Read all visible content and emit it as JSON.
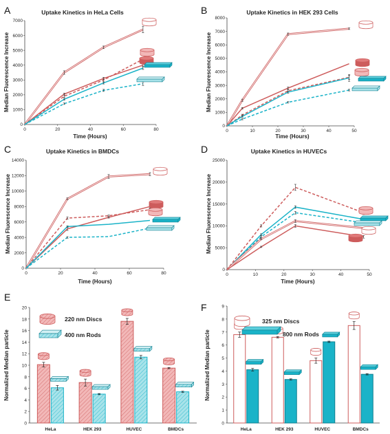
{
  "colors": {
    "red": "#cd5c5c",
    "teal": "#1ab3c8",
    "axis": "#444444",
    "disc_fill": "#f2b8b8",
    "rod_fill": "#a8e3ea"
  },
  "chart_data": [
    {
      "panel": "A",
      "type": "line",
      "title": "Uptake Kinetics in HeLa Cells",
      "xlabel": "Time (Hours)",
      "ylabel": "Median Fluorescence Increase",
      "xlim": [
        0,
        80
      ],
      "ylim": [
        0,
        7000
      ],
      "xticks": [
        0,
        20,
        40,
        60,
        80
      ],
      "yticks": [
        0,
        1000,
        2000,
        3000,
        4000,
        5000,
        6000,
        7000
      ],
      "x": [
        0,
        24,
        48,
        72
      ],
      "series": [
        {
          "style": "red-double",
          "values": [
            0,
            3500,
            5200,
            6400
          ],
          "err": [
            0,
            120,
            90,
            220
          ]
        },
        {
          "style": "red-dashed",
          "values": [
            0,
            1900,
            3000,
            4400
          ],
          "err": [
            0,
            80,
            120,
            120
          ]
        },
        {
          "style": "red-solid",
          "values": [
            0,
            2050,
            3100,
            4000
          ],
          "err": [
            0,
            60,
            80,
            80
          ]
        },
        {
          "style": "teal-solid",
          "values": [
            0,
            1700,
            2800,
            3800
          ],
          "err": [
            0,
            60,
            70,
            90
          ]
        },
        {
          "style": "teal-dashed",
          "values": [
            0,
            1400,
            2300,
            2750
          ],
          "err": [
            0,
            50,
            70,
            120
          ]
        }
      ],
      "icons": [
        "disc-outline",
        "disc-dashed",
        "disc-solid",
        "rod-solid",
        "rod-dashed"
      ]
    },
    {
      "panel": "B",
      "type": "line",
      "title": "Uptake Kinetics in HEK 293 Cells",
      "xlabel": "Time (Hours)",
      "ylabel": "Median Fluorescence Increase",
      "xlim": [
        0,
        50
      ],
      "ylim": [
        0,
        8000
      ],
      "xticks": [
        0,
        10,
        20,
        30,
        40,
        50
      ],
      "yticks": [
        0,
        1000,
        2000,
        3000,
        4000,
        5000,
        6000,
        7000,
        8000
      ],
      "x": [
        0,
        6,
        24,
        48
      ],
      "series": [
        {
          "style": "red-double",
          "values": [
            0,
            1900,
            6800,
            7200
          ],
          "err": [
            0,
            80,
            80,
            60
          ]
        },
        {
          "style": "red-solid",
          "values": [
            0,
            1300,
            2800,
            4600
          ],
          "err": [
            0,
            60,
            80,
            0
          ]
        },
        {
          "style": "red-dashed",
          "values": [
            0,
            800,
            2600,
            3600
          ],
          "err": [
            0,
            60,
            80,
            150
          ]
        },
        {
          "style": "teal-solid",
          "values": [
            0,
            700,
            2500,
            3550
          ],
          "err": [
            0,
            60,
            80,
            250
          ]
        },
        {
          "style": "teal-dashed",
          "values": [
            0,
            500,
            1750,
            2650
          ],
          "err": [
            0,
            50,
            60,
            60
          ]
        }
      ],
      "icons": [
        "disc-outline",
        "disc-solid",
        "disc-dashed",
        "rod-solid",
        "rod-dashed"
      ]
    },
    {
      "panel": "C",
      "type": "line",
      "title": "Uptake Kinetics in BMDCs",
      "xlabel": "Time (Hours)",
      "ylabel": "Median Fluorescence Increase",
      "xlim": [
        0,
        80
      ],
      "ylim": [
        0,
        14000
      ],
      "xticks": [
        0,
        20,
        40,
        60,
        80
      ],
      "yticks": [
        0,
        2000,
        4000,
        6000,
        8000,
        10000,
        12000,
        14000
      ],
      "x": [
        0,
        24,
        48,
        72
      ],
      "series": [
        {
          "style": "red-double",
          "values": [
            0,
            9000,
            11900,
            12200
          ],
          "err": [
            0,
            120,
            250,
            200
          ]
        },
        {
          "style": "red-solid",
          "values": [
            0,
            5100,
            6600,
            8000
          ],
          "err": [
            0,
            200,
            100,
            200
          ]
        },
        {
          "style": "red-dashed",
          "values": [
            0,
            6500,
            6800,
            7600
          ],
          "err": [
            0,
            150,
            100,
            200
          ]
        },
        {
          "style": "teal-solid",
          "values": [
            0,
            5400,
            5700,
            6200
          ],
          "err": [
            0,
            100,
            0,
            0
          ]
        },
        {
          "style": "teal-dashed",
          "values": [
            0,
            4000,
            4100,
            5200
          ],
          "err": [
            0,
            100,
            0,
            150
          ]
        }
      ],
      "icons": [
        "disc-outline",
        "disc-solid",
        "disc-dashed",
        "rod-solid",
        "rod-dashed"
      ]
    },
    {
      "panel": "D",
      "type": "line",
      "title": "Uptake Kinetics in HUVECs",
      "xlabel": "Time (Hours)",
      "ylabel": "Median Fluorescence Increase",
      "xlim": [
        0,
        50
      ],
      "ylim": [
        0,
        25000
      ],
      "xticks": [
        0,
        10,
        20,
        30,
        40,
        50
      ],
      "yticks": [
        0,
        5000,
        10000,
        15000,
        20000,
        25000
      ],
      "x": [
        0,
        12,
        24,
        48
      ],
      "series": [
        {
          "style": "red-dashed",
          "values": [
            0,
            10000,
            18800,
            13000
          ],
          "err": [
            0,
            250,
            700,
            400
          ]
        },
        {
          "style": "teal-solid",
          "values": [
            0,
            8000,
            14300,
            11500
          ],
          "err": [
            0,
            200,
            300,
            200
          ]
        },
        {
          "style": "teal-dashed",
          "values": [
            0,
            7500,
            13000,
            10700
          ],
          "err": [
            0,
            200,
            300,
            200
          ]
        },
        {
          "style": "red-double",
          "values": [
            0,
            7000,
            11100,
            9500
          ],
          "err": [
            0,
            200,
            300,
            200
          ]
        },
        {
          "style": "red-solid",
          "values": [
            0,
            5200,
            10000,
            7500
          ],
          "err": [
            0,
            150,
            300,
            300
          ]
        }
      ],
      "icons": [
        "disc-dashed",
        "rod-solid",
        "rod-dashed",
        "disc-outline",
        "disc-solid"
      ]
    },
    {
      "panel": "E",
      "type": "bar",
      "ylabel": "Normalized Median particle",
      "categories": [
        "HeLa",
        "HEK 293",
        "HUVEC",
        "BMDCs"
      ],
      "ylim": [
        0,
        20
      ],
      "yticks": [
        0,
        2,
        4,
        6,
        8,
        10,
        12,
        14,
        16,
        18,
        20
      ],
      "series": [
        {
          "name": "220 nm Discs",
          "style": "disc-hatched",
          "values": [
            10.1,
            7.0,
            17.6,
            9.5
          ],
          "err": [
            0.4,
            0.6,
            0.5,
            0.1
          ]
        },
        {
          "name": "400 nm Rods",
          "style": "rod-hatched",
          "values": [
            6.1,
            5.0,
            11.4,
            5.4
          ],
          "err": [
            0.4,
            0.1,
            0.3,
            0.1
          ]
        }
      ]
    },
    {
      "panel": "F",
      "type": "bar",
      "ylabel": "Normalized Median particle",
      "categories": [
        "HeLa",
        "HEK 293",
        "HUVEC",
        "BMDCs"
      ],
      "ylim": [
        0,
        9
      ],
      "yticks": [
        0,
        1,
        2,
        3,
        4,
        5,
        6,
        7,
        8,
        9
      ],
      "series": [
        {
          "name": "325 nm Discs",
          "style": "disc-outline",
          "values": [
            6.8,
            6.6,
            4.8,
            7.5
          ],
          "err": [
            0.2,
            0.05,
            0.2,
            0.3
          ]
        },
        {
          "name": "800 nm Rods",
          "style": "rod-solid",
          "values": [
            4.1,
            3.35,
            6.25,
            3.75
          ],
          "err": [
            0.1,
            0.05,
            0.05,
            0.05
          ]
        }
      ]
    }
  ]
}
